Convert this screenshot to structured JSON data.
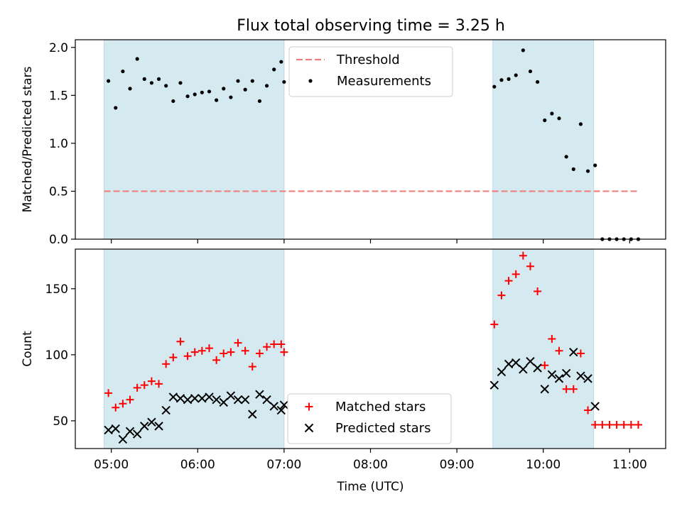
{
  "chart_data": [
    {
      "type": "scatter",
      "title": "Flux total observing time = 3.25 h",
      "ylabel": "Matched/Predicted stars",
      "xlabel": "",
      "xlim": [
        "04:35",
        "11:25"
      ],
      "ylim": [
        0,
        2.08
      ],
      "yticks": [
        "0.0",
        "0.5",
        "1.0",
        "1.5",
        "2.0"
      ],
      "xticks": [
        "05:00",
        "06:00",
        "07:00",
        "08:00",
        "09:00",
        "10:00",
        "11:00"
      ],
      "shaded_intervals": [
        [
          "04:55",
          "07:00"
        ],
        [
          "09:25",
          "10:35"
        ]
      ],
      "shade_color": "#d4eaf0",
      "legend": {
        "position": "upper center",
        "entries": [
          {
            "label": "Threshold",
            "style": "dashed-line",
            "color": "#f07f7f"
          },
          {
            "label": "Measurements",
            "style": "dot",
            "color": "#000000"
          }
        ]
      },
      "series": [
        {
          "name": "Threshold",
          "color": "#f07f7f",
          "x": [
            "04:55",
            "11:05"
          ],
          "y": [
            0.5,
            0.5
          ]
        },
        {
          "name": "Measurements",
          "color": "#000000",
          "x": [
            "04:58",
            "05:03",
            "05:08",
            "05:13",
            "05:18",
            "05:23",
            "05:28",
            "05:33",
            "05:38",
            "05:43",
            "05:48",
            "05:53",
            "05:58",
            "06:03",
            "06:08",
            "06:13",
            "06:18",
            "06:23",
            "06:28",
            "06:33",
            "06:38",
            "06:43",
            "06:48",
            "06:53",
            "06:58",
            "07:00",
            "09:26",
            "09:31",
            "09:36",
            "09:41",
            "09:46",
            "09:51",
            "09:56",
            "10:01",
            "10:06",
            "10:11",
            "10:16",
            "10:21",
            "10:26",
            "10:31",
            "10:36",
            "10:41",
            "10:46",
            "10:51",
            "10:56",
            "11:01",
            "11:06"
          ],
          "y": [
            1.65,
            1.37,
            1.75,
            1.57,
            1.88,
            1.67,
            1.63,
            1.67,
            1.6,
            1.44,
            1.63,
            1.49,
            1.51,
            1.53,
            1.54,
            1.45,
            1.57,
            1.48,
            1.65,
            1.56,
            1.65,
            1.44,
            1.6,
            1.77,
            1.85,
            1.64,
            1.59,
            1.66,
            1.67,
            1.71,
            1.97,
            1.75,
            1.64,
            1.24,
            1.31,
            1.26,
            0.86,
            0.73,
            1.2,
            0.71,
            0.77,
            0.0,
            0.0,
            0.0,
            0.0,
            0.0,
            0.0
          ]
        }
      ]
    },
    {
      "type": "scatter",
      "title": "",
      "ylabel": "Count",
      "xlabel": "Time (UTC)",
      "xlim": [
        "04:35",
        "11:25"
      ],
      "ylim": [
        29,
        180
      ],
      "yticks": [
        "50",
        "100",
        "150"
      ],
      "xticks": [
        "05:00",
        "06:00",
        "07:00",
        "08:00",
        "09:00",
        "10:00",
        "11:00"
      ],
      "shaded_intervals": [
        [
          "04:55",
          "07:00"
        ],
        [
          "09:25",
          "10:35"
        ]
      ],
      "shade_color": "#d4eaf0",
      "legend": {
        "position": "lower center",
        "entries": [
          {
            "label": "Matched stars",
            "style": "plus",
            "color": "#ff0000"
          },
          {
            "label": "Predicted stars",
            "style": "x",
            "color": "#000000"
          }
        ]
      },
      "series": [
        {
          "name": "Matched stars",
          "color": "#ff0000",
          "x": [
            "04:58",
            "05:03",
            "05:08",
            "05:13",
            "05:18",
            "05:23",
            "05:28",
            "05:33",
            "05:38",
            "05:43",
            "05:48",
            "05:53",
            "05:58",
            "06:03",
            "06:08",
            "06:13",
            "06:18",
            "06:23",
            "06:28",
            "06:33",
            "06:38",
            "06:43",
            "06:48",
            "06:53",
            "06:58",
            "07:00",
            "09:26",
            "09:31",
            "09:36",
            "09:41",
            "09:46",
            "09:51",
            "09:56",
            "10:01",
            "10:06",
            "10:11",
            "10:16",
            "10:21",
            "10:26",
            "10:31",
            "10:36",
            "10:41",
            "10:46",
            "10:51",
            "10:56",
            "11:01",
            "11:06"
          ],
          "y": [
            71,
            60,
            63,
            66,
            75,
            77,
            80,
            78,
            93,
            98,
            110,
            99,
            102,
            103,
            105,
            96,
            101,
            102,
            109,
            103,
            91,
            101,
            106,
            108,
            108,
            102,
            123,
            145,
            156,
            161,
            175,
            167,
            148,
            92,
            112,
            103,
            74,
            74,
            101,
            58,
            47,
            47,
            47,
            47,
            47,
            47,
            47
          ]
        },
        {
          "name": "Predicted stars",
          "color": "#000000",
          "x": [
            "04:58",
            "05:03",
            "05:08",
            "05:13",
            "05:18",
            "05:23",
            "05:28",
            "05:33",
            "05:38",
            "05:43",
            "05:48",
            "05:53",
            "05:58",
            "06:03",
            "06:08",
            "06:13",
            "06:18",
            "06:23",
            "06:28",
            "06:33",
            "06:38",
            "06:43",
            "06:48",
            "06:53",
            "06:58",
            "07:00",
            "09:26",
            "09:31",
            "09:36",
            "09:41",
            "09:46",
            "09:51",
            "09:56",
            "10:01",
            "10:06",
            "10:11",
            "10:16",
            "10:21",
            "10:26",
            "10:31",
            "10:36"
          ],
          "y": [
            43,
            44,
            36,
            42,
            40,
            46,
            49,
            46,
            58,
            68,
            67,
            66,
            67,
            67,
            68,
            66,
            64,
            69,
            66,
            66,
            55,
            70,
            66,
            61,
            58,
            62,
            77,
            87,
            93,
            94,
            89,
            95,
            90,
            74,
            85,
            82,
            86,
            102,
            84,
            82,
            61
          ]
        }
      ]
    }
  ]
}
